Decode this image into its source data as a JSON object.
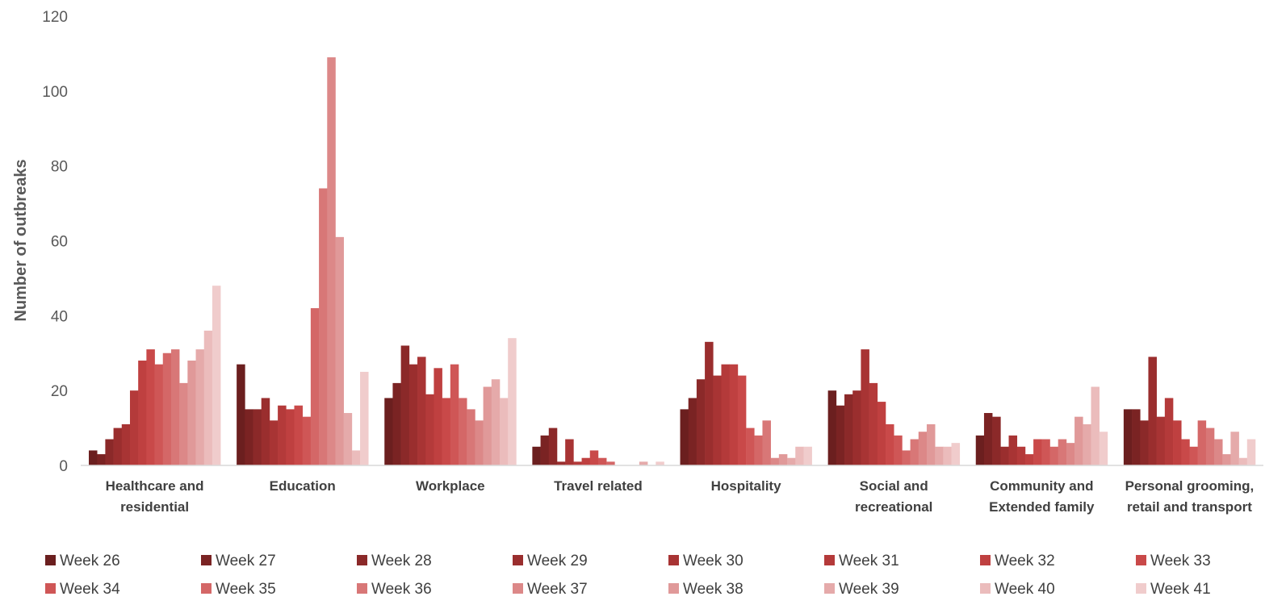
{
  "chart_data": {
    "type": "bar",
    "title": "",
    "xlabel": "",
    "ylabel": "Number of outbreaks",
    "ylim": [
      0,
      120
    ],
    "yticks": [
      0,
      20,
      40,
      60,
      80,
      100,
      120
    ],
    "grid": false,
    "legend_position": "bottom",
    "categories": [
      [
        "Healthcare and",
        "residential"
      ],
      [
        "Education"
      ],
      [
        "Workplace"
      ],
      [
        "Travel related"
      ],
      [
        "Hospitality"
      ],
      [
        "Social and",
        "recreational"
      ],
      [
        "Community and",
        "Extended family"
      ],
      [
        "Personal grooming,",
        "retail and transport"
      ]
    ],
    "series": [
      {
        "name": "Week 26",
        "color": "#6b1f1f",
        "values": [
          4,
          27,
          18,
          5,
          15,
          20,
          8,
          15
        ]
      },
      {
        "name": "Week 27",
        "color": "#7a2323",
        "values": [
          3,
          15,
          22,
          8,
          18,
          16,
          14,
          15
        ]
      },
      {
        "name": "Week 28",
        "color": "#8b2929",
        "values": [
          7,
          15,
          32,
          10,
          23,
          19,
          13,
          12
        ]
      },
      {
        "name": "Week 29",
        "color": "#9a2e2e",
        "values": [
          10,
          18,
          27,
          1,
          33,
          20,
          5,
          29
        ]
      },
      {
        "name": "Week 30",
        "color": "#a83434",
        "values": [
          11,
          12,
          29,
          7,
          24,
          31,
          8,
          13
        ]
      },
      {
        "name": "Week 31",
        "color": "#b43a3a",
        "values": [
          20,
          16,
          19,
          1,
          27,
          22,
          5,
          18
        ]
      },
      {
        "name": "Week 32",
        "color": "#bf4040",
        "values": [
          28,
          15,
          26,
          2,
          27,
          17,
          3,
          12
        ]
      },
      {
        "name": "Week 33",
        "color": "#c94949",
        "values": [
          31,
          16,
          18,
          4,
          24,
          11,
          7,
          7
        ]
      },
      {
        "name": "Week 34",
        "color": "#cf5656",
        "values": [
          27,
          13,
          27,
          2,
          10,
          8,
          7,
          5
        ]
      },
      {
        "name": "Week 35",
        "color": "#d46767",
        "values": [
          30,
          42,
          18,
          1,
          8,
          4,
          5,
          12
        ]
      },
      {
        "name": "Week 36",
        "color": "#d87777",
        "values": [
          31,
          74,
          15,
          0,
          12,
          7,
          7,
          10
        ]
      },
      {
        "name": "Week 37",
        "color": "#dc8888",
        "values": [
          22,
          109,
          12,
          0,
          2,
          9,
          6,
          7
        ]
      },
      {
        "name": "Week 38",
        "color": "#e09999",
        "values": [
          28,
          61,
          21,
          0,
          3,
          11,
          13,
          3
        ]
      },
      {
        "name": "Week 39",
        "color": "#e5aaaa",
        "values": [
          31,
          14,
          23,
          1,
          2,
          5,
          11,
          9
        ]
      },
      {
        "name": "Week 40",
        "color": "#ebbcbc",
        "values": [
          36,
          4,
          18,
          0,
          5,
          5,
          21,
          2
        ]
      },
      {
        "name": "Week 41",
        "color": "#f0cccc",
        "values": [
          48,
          25,
          34,
          1,
          5,
          6,
          9,
          7
        ]
      }
    ]
  }
}
